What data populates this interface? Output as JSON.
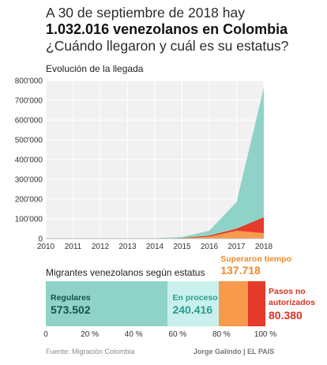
{
  "headline": {
    "line1": "A 30 de septiembre de 2018 hay",
    "line2": "1.032.016 venezolanos en Colombia",
    "line3": "¿Cuándo llegaron y cuál es su estatus?"
  },
  "chart_data": [
    {
      "type": "area",
      "title": "Evolución de la llegada",
      "x": [
        2010,
        2011,
        2012,
        2013,
        2014,
        2015,
        2016,
        2017,
        2018
      ],
      "ylim": [
        0,
        800000
      ],
      "xlim": [
        2010,
        2018
      ],
      "yticks": [
        "0",
        "100'000",
        "200'000",
        "300'000",
        "400'000",
        "500'000",
        "600'000",
        "700'000",
        "800'000"
      ],
      "xticks": [
        "2010",
        "2011",
        "2012",
        "2013",
        "2014",
        "2015",
        "2016",
        "2017",
        "2018"
      ],
      "grid": true,
      "series": [
        {
          "color": "#8fd3c8",
          "values": [
            2000,
            2000,
            2000,
            2000,
            2000,
            8000,
            40000,
            185000,
            765000
          ]
        },
        {
          "color": "#e63a2a",
          "values": [
            0,
            0,
            0,
            0,
            0,
            3000,
            15000,
            50000,
            108000
          ]
        },
        {
          "color": "#f79a4b",
          "values": [
            0,
            0,
            0,
            0,
            0,
            2000,
            10000,
            40000,
            28000
          ]
        }
      ]
    },
    {
      "type": "bar",
      "title": "Migrantes venezolanos según estatus",
      "xlim": [
        0,
        100
      ],
      "xticks": [
        "0",
        "20 %",
        "40 %",
        "60 %",
        "80 %",
        "100 %"
      ],
      "segments": [
        {
          "name": "Regulares",
          "value": "573.502",
          "amount": 573502,
          "color": "#8fd3c8",
          "text_color": "#17524d"
        },
        {
          "name": "En proceso",
          "value": "240.416",
          "amount": 240416,
          "color": "#c9f0ec",
          "text_color": "#2a9e90"
        },
        {
          "name": "Superaron tiempo",
          "value": "137.718",
          "amount": 137718,
          "color": "#f79a4b",
          "text_color": "#f08a2a"
        },
        {
          "name": "Pasos no autorizados",
          "name_lines": [
            "Pasos no",
            "autorizados"
          ],
          "value": "80.380",
          "amount": 80380,
          "color": "#e63a2a",
          "text_color": "#d8321f"
        }
      ]
    }
  ],
  "footer": {
    "source": "Fuente: Migración Colombia",
    "credit": "Jorge Galindo | EL PAIS"
  }
}
